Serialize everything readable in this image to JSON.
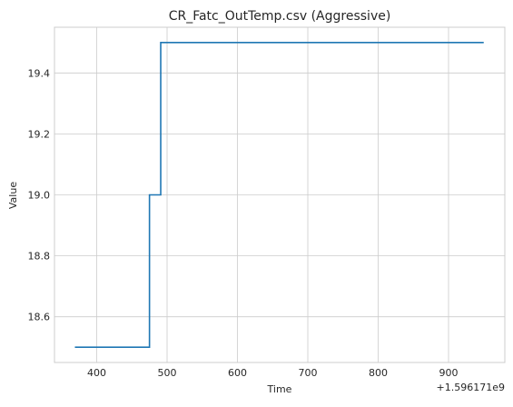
{
  "chart_data": {
    "type": "line",
    "title": "CR_Fatc_OutTemp.csv (Aggressive)",
    "xlabel": "Time",
    "ylabel": "Value",
    "x_offset_label": "+1.596171e9",
    "xlim": [
      340,
      980
    ],
    "ylim": [
      18.45,
      19.55
    ],
    "xticks": [
      400,
      500,
      600,
      700,
      800,
      900
    ],
    "yticks": [
      18.6,
      18.8,
      19.0,
      19.2,
      19.4
    ],
    "ytick_labels": [
      "18.6",
      "18.8",
      "19.0",
      "19.2",
      "19.4"
    ],
    "grid": true,
    "series": [
      {
        "color": "#1f77b4",
        "x": [
          369,
          475,
          475,
          491,
          491,
          950
        ],
        "y": [
          18.5,
          18.5,
          19.0,
          19.0,
          19.5,
          19.5
        ]
      }
    ]
  }
}
